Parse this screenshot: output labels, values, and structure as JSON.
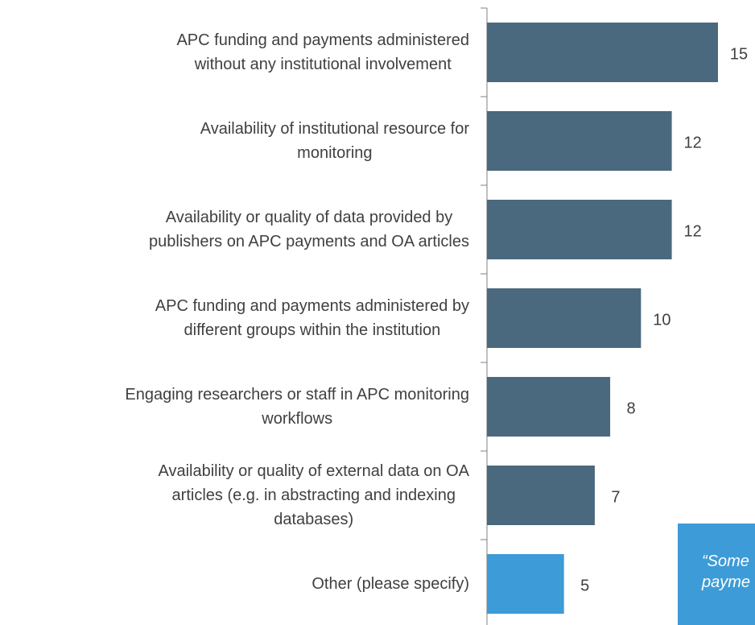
{
  "chart_data": {
    "type": "barh",
    "categories": [
      "APC funding and payments administered\nwithout any institutional involvement",
      "Availability of institutional resource for\nmonitoring",
      "Availability or quality of data provided by\npublishers on APC payments and OA articles",
      "APC funding and payments administered by\ndifferent groups within the institution",
      "Engaging researchers or staff in APC monitoring\nworkflows",
      "Availability or quality of external data on OA\narticles (e.g. in abstracting and indexing\ndatabases)",
      "Other (please specify)"
    ],
    "values": [
      15,
      12,
      12,
      10,
      8,
      7,
      5
    ],
    "colors": [
      "#4a697e",
      "#4a697e",
      "#4a697e",
      "#4a697e",
      "#4a697e",
      "#4a697e",
      "#3d9bd8"
    ],
    "xlim": [
      0,
      15
    ],
    "annotation": [
      "“Some",
      "payme"
    ]
  }
}
